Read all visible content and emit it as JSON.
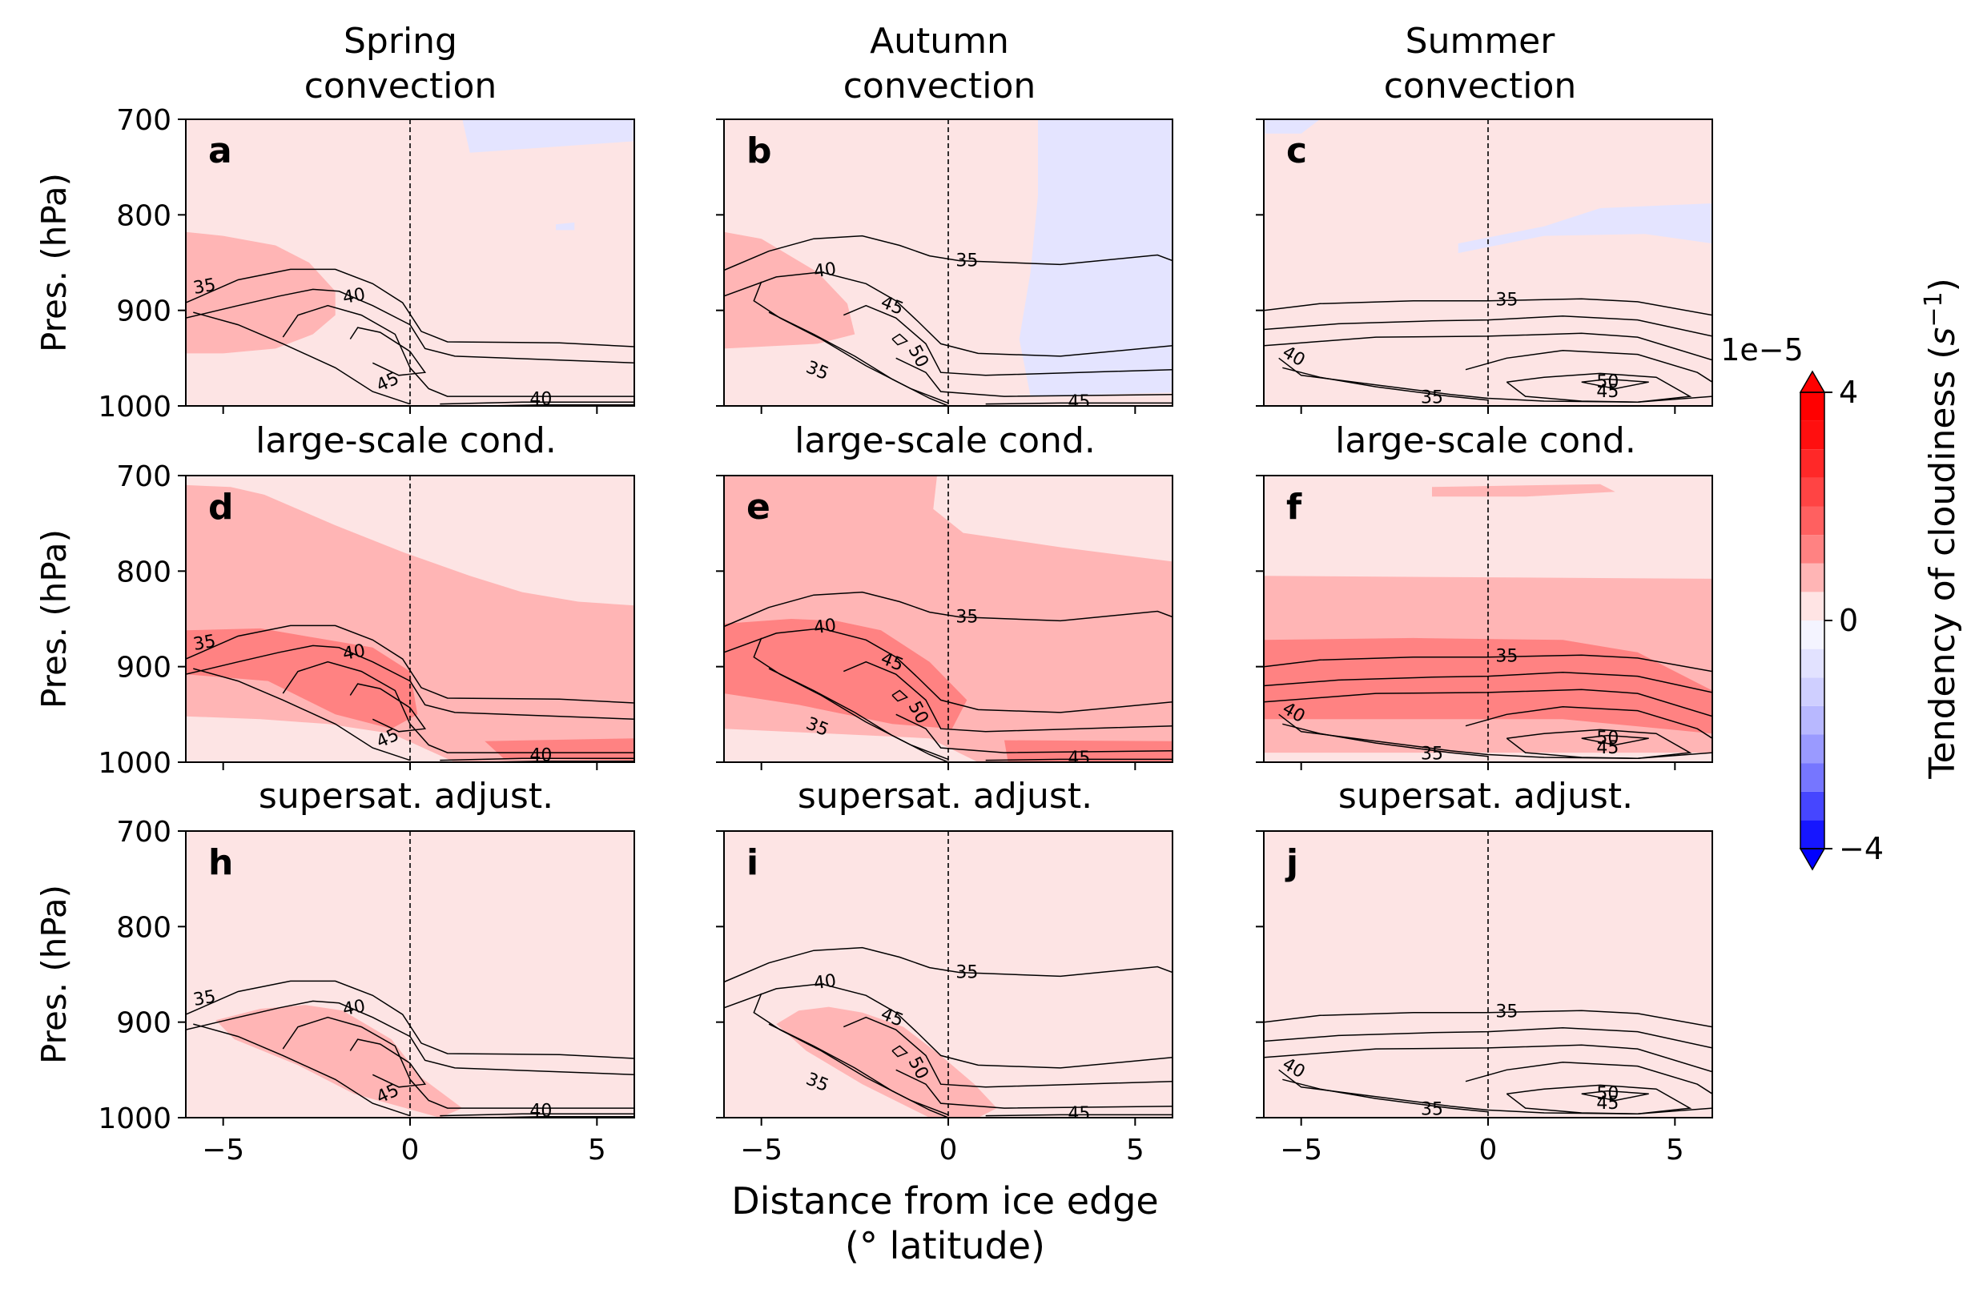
{
  "chart_data": {
    "type": "heatmap",
    "description_note": "",
    "column_titles": [
      [
        "Spring",
        "convection"
      ],
      [
        "Autumn",
        "convection"
      ],
      [
        "Summer",
        "convection"
      ]
    ],
    "row_titles": [
      "",
      "large-scale cond.",
      "supersat. adjust."
    ],
    "panel_letters": [
      "a",
      "b",
      "c",
      "d",
      "e",
      "f",
      "h",
      "i",
      "j"
    ],
    "ylabel": "Pres. (hPa)",
    "yticks": [
      700,
      800,
      900,
      1000
    ],
    "ylim": [
      1000,
      700
    ],
    "xlabel": [
      "Distance from ice edge",
      "(° latitude)"
    ],
    "xticks": [
      -5,
      0,
      5
    ],
    "xtick_labels": [
      "−5",
      "0",
      "5"
    ],
    "xlim": [
      -6,
      6
    ],
    "colorbar": {
      "label": "Tendency of cloudiness (s⁻¹)",
      "label_main": "Tendency of cloudiness (",
      "label_unit": "s",
      "label_exp": "−1",
      "label_close": ")",
      "multiplier": "1e−5",
      "ticks": [
        4,
        0,
        -4
      ],
      "tick_labels": [
        "4",
        "0",
        "−4"
      ],
      "range": [
        -4,
        4
      ],
      "levels": [
        -4,
        -3.5,
        -3,
        -2.5,
        -2,
        -1.5,
        -1,
        -0.5,
        0,
        0.5,
        1,
        1.5,
        2,
        2.5,
        3,
        3.5,
        4
      ],
      "colors": [
        "#1616ff",
        "#4646ff",
        "#7676ff",
        "#9a9aff",
        "#b8b8ff",
        "#cfcfff",
        "#e2e2ff",
        "#f4f4ff",
        "#ffe4e4",
        "#ffb5b5",
        "#ff8282",
        "#ff6060",
        "#ff4444",
        "#ff2828",
        "#ff0f0f",
        "#ff0000"
      ],
      "extend_colors": {
        "low": "#0000ff",
        "high": "#ff0000"
      }
    },
    "shading_colors": {
      "base": "#fde4e4",
      "light": "#ffb5b5",
      "medium": "#ff8282",
      "strong": "#ff6060",
      "negative": "#e4e4ff"
    },
    "contour_labels": {
      "spring": [
        "35",
        "40",
        "45",
        "40"
      ],
      "autumn": [
        "35",
        "40",
        "45",
        "50",
        "35",
        "45"
      ],
      "summer": [
        "35",
        "40",
        "35",
        "50",
        "45"
      ]
    },
    "grid": false
  }
}
